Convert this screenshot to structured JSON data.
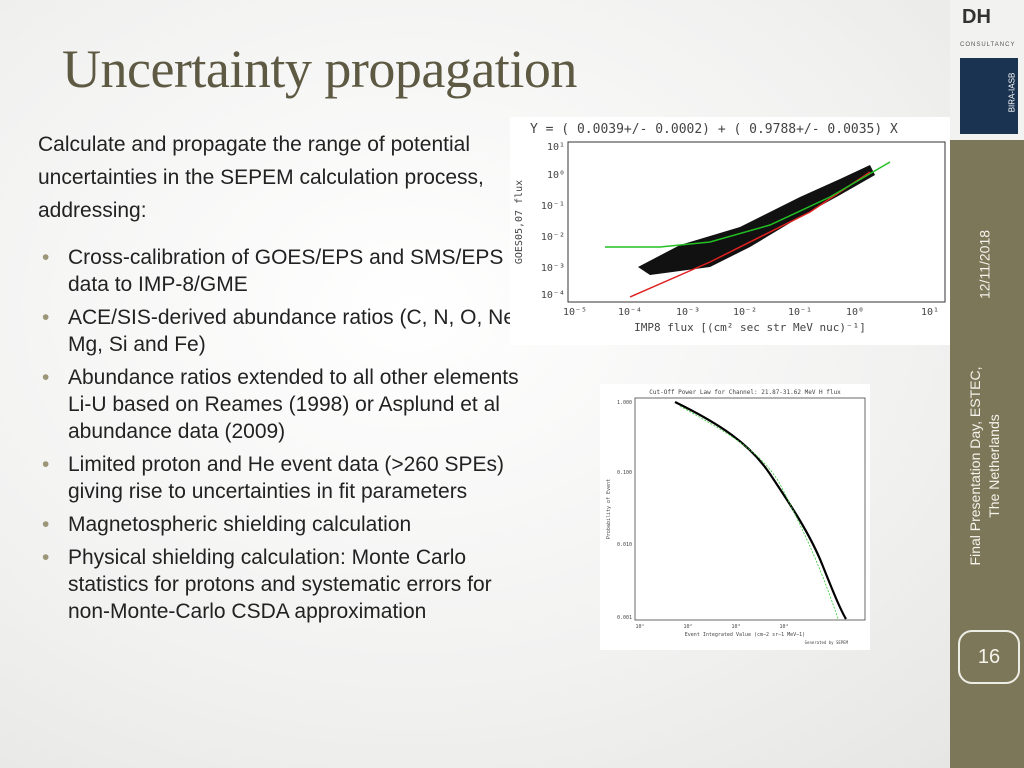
{
  "header": {
    "title": "Uncertainty propagation"
  },
  "body": {
    "intro": "Calculate and propagate the range of potential uncertainties in the SEPEM calculation process, addressing:",
    "bullets": [
      "Cross-calibration of GOES/EPS and SMS/EPS data to IMP-8/GME",
      "ACE/SIS-derived abundance ratios (C, N, O, Ne, Mg, Si and Fe)",
      "Abundance ratios extended to all other elements Li-U based on Reames (1998) or Asplund et al abundance data (2009)",
      "Limited proton and He event data (>260 SPEs) giving rise to uncertainties in fit parameters",
      "Magnetospheric shielding calculation",
      "Physical shielding calculation: Monte Carlo statistics for protons and systematic errors for non-Monte-Carlo CSDA approximation"
    ]
  },
  "figure1": {
    "equation": "Y = ( 0.0039+/- 0.0002) + ( 0.9788+/- 0.0035) X",
    "y_label": "GOES05,07 flux",
    "x_label": "IMP8 flux [(cm² sec str MeV nuc)⁻¹]",
    "y_ticks": [
      "10¹",
      "10⁰",
      "10⁻¹",
      "10⁻²",
      "10⁻³",
      "10⁻⁴"
    ],
    "x_ticks": [
      "10⁻⁵",
      "10⁻⁴",
      "10⁻³",
      "10⁻²",
      "10⁻¹",
      "10⁰",
      "10¹"
    ]
  },
  "figure2": {
    "title": "Cut-Off Power Law for Channel: 21.87-31.62 MeV H flux",
    "y_label": "Probability of Event",
    "x_label": "Event Integrated Value (cm−2 sr−1 MeV−1)",
    "y_ticks": [
      "1.000",
      "0.100",
      "0.010",
      "0.001"
    ],
    "x_ticks": [
      "10¹",
      "10²",
      "10³",
      "10⁴"
    ],
    "credit": "Generated by SEPEM"
  },
  "sidebar": {
    "logo": "DH",
    "logo_sub": "CONSULTANCY",
    "logo2": "BIRA-IASB",
    "date": "12/11/2018",
    "event": [
      "Final Presentation Day, ESTEC,",
      "The Netherlands"
    ],
    "page": "16"
  }
}
